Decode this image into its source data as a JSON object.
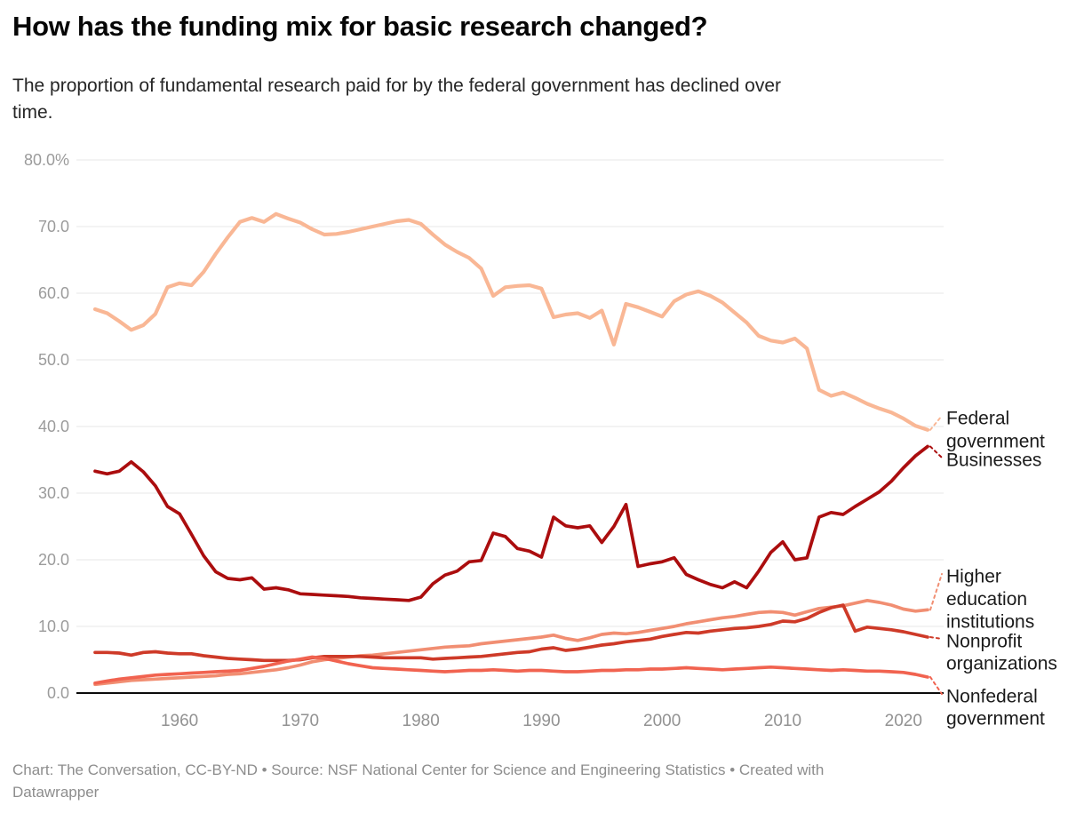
{
  "header": {
    "title": "How has the funding mix for basic research changed?",
    "subtitle_line1": "The proportion of fundamental research paid for by the federal government has declined over",
    "subtitle_line2": "time."
  },
  "footer": {
    "line1": "Chart: The Conversation, CC-BY-ND • Source: NSF National Center for Science and Engineering Statistics • Created with",
    "line2": "Datawrapper"
  },
  "chart_data": {
    "type": "line",
    "title": "How has the funding mix for basic research changed?",
    "x_range": [
      1953,
      2022
    ],
    "ylim": [
      0,
      80
    ],
    "grid": true,
    "legend_position": "right-edge-labels",
    "y_axis": {
      "unit": "%",
      "ticks": [
        {
          "label": "80.0%",
          "value": 80
        },
        {
          "label": "70.0",
          "value": 70
        },
        {
          "label": "60.0",
          "value": 60
        },
        {
          "label": "50.0",
          "value": 50
        },
        {
          "label": "40.0",
          "value": 40
        },
        {
          "label": "30.0",
          "value": 30
        },
        {
          "label": "20.0",
          "value": 20
        },
        {
          "label": "10.0",
          "value": 10
        },
        {
          "label": "0.0",
          "value": 0
        }
      ]
    },
    "x_axis": {
      "ticks": [
        {
          "label": "1960",
          "value": 1960
        },
        {
          "label": "1970",
          "value": 1970
        },
        {
          "label": "1980",
          "value": 1980
        },
        {
          "label": "1990",
          "value": 1990
        },
        {
          "label": "2000",
          "value": 2000
        },
        {
          "label": "2010",
          "value": 2010
        },
        {
          "label": "2020",
          "value": 2020
        }
      ]
    },
    "series": [
      {
        "id": "federal-government",
        "name": "Federal government",
        "label_lines": [
          "Federal",
          "government"
        ],
        "color": "#F9B795",
        "values": [
          57.6,
          57.0,
          55.8,
          54.5,
          55.2,
          56.9,
          60.9,
          61.5,
          61.2,
          63.2,
          65.9,
          68.4,
          70.7,
          71.3,
          70.7,
          71.9,
          71.2,
          70.6,
          69.6,
          68.8,
          68.9,
          69.2,
          69.6,
          70.0,
          70.4,
          70.8,
          71.0,
          70.4,
          68.8,
          67.3,
          66.2,
          65.3,
          63.7,
          59.6,
          60.9,
          61.1,
          61.2,
          60.7,
          56.4,
          56.8,
          57.0,
          56.3,
          57.4,
          52.3,
          58.4,
          57.9,
          57.2,
          56.5,
          58.8,
          59.8,
          60.3,
          59.6,
          58.6,
          57.1,
          55.6,
          53.6,
          52.9,
          52.6,
          53.2,
          51.7,
          45.5,
          44.6,
          45.1,
          44.3,
          43.4,
          42.7,
          42.1,
          41.2,
          40.1,
          39.5
        ]
      },
      {
        "id": "businesses",
        "name": "Businesses",
        "label_lines": [
          "Businesses"
        ],
        "color": "#AB0D0E",
        "values": [
          33.3,
          32.9,
          33.3,
          34.7,
          33.2,
          31.1,
          28.0,
          26.9,
          23.8,
          20.6,
          18.2,
          17.2,
          17.0,
          17.3,
          15.6,
          15.8,
          15.5,
          14.9,
          14.8,
          14.7,
          14.6,
          14.5,
          14.3,
          14.2,
          14.1,
          14.0,
          13.9,
          14.4,
          16.4,
          17.7,
          18.3,
          19.7,
          19.9,
          24.0,
          23.5,
          21.7,
          21.3,
          20.4,
          26.4,
          25.1,
          24.8,
          25.1,
          22.6,
          25.0,
          28.3,
          19.0,
          19.4,
          19.7,
          20.3,
          17.8,
          17.0,
          16.3,
          15.8,
          16.7,
          15.8,
          18.3,
          21.1,
          22.7,
          20.0,
          20.3,
          26.4,
          27.1,
          26.8,
          28.0,
          29.1,
          30.2,
          31.8,
          33.8,
          35.6,
          37.0
        ]
      },
      {
        "id": "higher-education-institutions",
        "name": "Higher education institutions",
        "label_lines": [
          "Higher",
          "education",
          "institutions"
        ],
        "color": "#F18E72",
        "values": [
          1.3,
          1.5,
          1.7,
          1.9,
          2.0,
          2.1,
          2.2,
          2.3,
          2.4,
          2.5,
          2.6,
          2.8,
          2.9,
          3.1,
          3.3,
          3.5,
          3.8,
          4.2,
          4.7,
          5.0,
          5.2,
          5.4,
          5.6,
          5.7,
          5.9,
          6.1,
          6.3,
          6.5,
          6.7,
          6.9,
          7.0,
          7.1,
          7.4,
          7.6,
          7.8,
          8.0,
          8.2,
          8.4,
          8.7,
          8.2,
          7.9,
          8.3,
          8.8,
          9.0,
          8.9,
          9.1,
          9.4,
          9.7,
          10.0,
          10.4,
          10.7,
          11.0,
          11.3,
          11.5,
          11.8,
          12.1,
          12.2,
          12.1,
          11.7,
          12.2,
          12.7,
          12.9,
          13.1,
          13.5,
          13.9,
          13.6,
          13.2,
          12.6,
          12.3,
          12.5
        ]
      },
      {
        "id": "nonprofit-organizations",
        "name": "Nonprofit organizations",
        "label_lines": [
          "Nonprofit",
          "organizations"
        ],
        "color": "#CE3A28",
        "values": [
          6.1,
          6.1,
          6.0,
          5.7,
          6.1,
          6.2,
          6.0,
          5.9,
          5.9,
          5.6,
          5.4,
          5.2,
          5.1,
          5.0,
          4.9,
          4.9,
          4.9,
          5.0,
          5.3,
          5.5,
          5.5,
          5.5,
          5.5,
          5.4,
          5.3,
          5.3,
          5.3,
          5.3,
          5.1,
          5.2,
          5.3,
          5.4,
          5.5,
          5.7,
          5.9,
          6.1,
          6.2,
          6.6,
          6.8,
          6.4,
          6.6,
          6.9,
          7.2,
          7.4,
          7.7,
          7.9,
          8.1,
          8.5,
          8.8,
          9.1,
          9.0,
          9.3,
          9.5,
          9.7,
          9.8,
          10.0,
          10.3,
          10.8,
          10.7,
          11.2,
          12.1,
          12.8,
          13.2,
          9.3,
          9.9,
          9.7,
          9.5,
          9.2,
          8.8,
          8.4
        ]
      },
      {
        "id": "nonfederal-government",
        "name": "Nonfederal government",
        "label_lines": [
          "Nonfederal",
          "government"
        ],
        "color": "#F16350",
        "values": [
          1.5,
          1.8,
          2.1,
          2.3,
          2.5,
          2.7,
          2.8,
          2.9,
          3.0,
          3.1,
          3.2,
          3.3,
          3.4,
          3.7,
          4.0,
          4.4,
          4.8,
          5.1,
          5.4,
          5.2,
          4.8,
          4.4,
          4.1,
          3.8,
          3.7,
          3.6,
          3.5,
          3.4,
          3.3,
          3.2,
          3.3,
          3.4,
          3.4,
          3.5,
          3.4,
          3.3,
          3.4,
          3.4,
          3.3,
          3.2,
          3.2,
          3.3,
          3.4,
          3.4,
          3.5,
          3.5,
          3.6,
          3.6,
          3.7,
          3.8,
          3.7,
          3.6,
          3.5,
          3.6,
          3.7,
          3.8,
          3.9,
          3.8,
          3.7,
          3.6,
          3.5,
          3.4,
          3.5,
          3.4,
          3.3,
          3.3,
          3.2,
          3.1,
          2.8,
          2.4
        ]
      }
    ]
  }
}
